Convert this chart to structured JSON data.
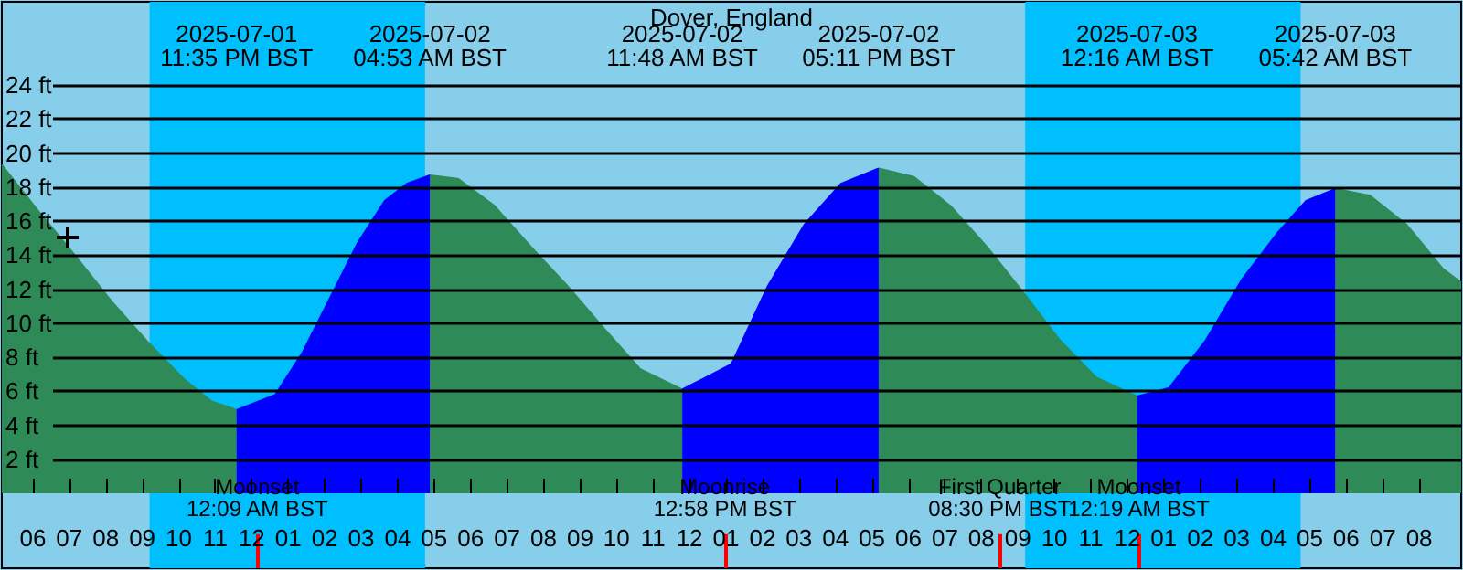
{
  "chart_data": {
    "type": "area",
    "title": "Dover, England",
    "xlim": [
      "2025-07-01T17:09",
      "2025-07-03T09:09"
    ],
    "xticks": [
      {
        "value": "2025-07-01T18:00",
        "label": "06"
      },
      {
        "value": "2025-07-01T19:00",
        "label": "07"
      },
      {
        "value": "2025-07-01T20:00",
        "label": "08"
      },
      {
        "value": "2025-07-01T21:00",
        "label": "09"
      },
      {
        "value": "2025-07-01T22:00",
        "label": "10"
      },
      {
        "value": "2025-07-01T23:00",
        "label": "11"
      },
      {
        "value": "2025-07-02T00:00",
        "label": "12"
      },
      {
        "value": "2025-07-02T01:00",
        "label": "01"
      },
      {
        "value": "2025-07-02T02:00",
        "label": "02"
      },
      {
        "value": "2025-07-02T03:00",
        "label": "03"
      },
      {
        "value": "2025-07-02T04:00",
        "label": "04"
      },
      {
        "value": "2025-07-02T05:00",
        "label": "05"
      },
      {
        "value": "2025-07-02T06:00",
        "label": "06"
      },
      {
        "value": "2025-07-02T07:00",
        "label": "07"
      },
      {
        "value": "2025-07-02T08:00",
        "label": "08"
      },
      {
        "value": "2025-07-02T09:00",
        "label": "09"
      },
      {
        "value": "2025-07-02T10:00",
        "label": "10"
      },
      {
        "value": "2025-07-02T11:00",
        "label": "11"
      },
      {
        "value": "2025-07-02T12:00",
        "label": "12"
      },
      {
        "value": "2025-07-02T13:00",
        "label": "01"
      },
      {
        "value": "2025-07-02T14:00",
        "label": "02"
      },
      {
        "value": "2025-07-02T15:00",
        "label": "03"
      },
      {
        "value": "2025-07-02T16:00",
        "label": "04"
      },
      {
        "value": "2025-07-02T17:00",
        "label": "05"
      },
      {
        "value": "2025-07-02T18:00",
        "label": "06"
      },
      {
        "value": "2025-07-02T19:00",
        "label": "07"
      },
      {
        "value": "2025-07-02T20:00",
        "label": "08"
      },
      {
        "value": "2025-07-02T21:00",
        "label": "09"
      },
      {
        "value": "2025-07-02T22:00",
        "label": "10"
      },
      {
        "value": "2025-07-02T23:00",
        "label": "11"
      },
      {
        "value": "2025-07-03T00:00",
        "label": "12"
      },
      {
        "value": "2025-07-03T01:00",
        "label": "01"
      },
      {
        "value": "2025-07-03T02:00",
        "label": "02"
      },
      {
        "value": "2025-07-03T03:00",
        "label": "03"
      },
      {
        "value": "2025-07-03T04:00",
        "label": "04"
      },
      {
        "value": "2025-07-03T05:00",
        "label": "05"
      },
      {
        "value": "2025-07-03T06:00",
        "label": "06"
      },
      {
        "value": "2025-07-03T07:00",
        "label": "07"
      },
      {
        "value": "2025-07-03T08:00",
        "label": "08"
      }
    ],
    "ylim": [
      -4.4,
      28.9
    ],
    "yticks": [
      {
        "value": 2,
        "label": "2 ft"
      },
      {
        "value": 4,
        "label": "4 ft"
      },
      {
        "value": 6,
        "label": "6 ft"
      },
      {
        "value": 8,
        "label": "8 ft"
      },
      {
        "value": 10,
        "label": "10 ft"
      },
      {
        "value": 12,
        "label": "12 ft"
      },
      {
        "value": 14,
        "label": "14 ft"
      },
      {
        "value": 16,
        "label": "16 ft"
      },
      {
        "value": 18,
        "label": "18 ft"
      },
      {
        "value": 20,
        "label": "20 ft"
      },
      {
        "value": 22,
        "label": "22 ft"
      },
      {
        "value": 24,
        "label": "24 ft"
      }
    ],
    "grid": "y",
    "series": [
      {
        "color": "#2e8b57",
        "x": [
          "2025-07-01T17:09",
          "2025-07-01T18:09",
          "2025-07-01T19:09",
          "2025-07-01T20:09",
          "2025-07-01T21:09",
          "2025-07-01T22:09",
          "2025-07-01T22:54",
          "2025-07-01T23:35",
          "2025-07-02T02:09",
          "2025-07-02T04:53",
          "2025-07-02T05:39",
          "2025-07-02T06:39",
          "2025-07-02T07:39",
          "2025-07-02T08:39",
          "2025-07-02T09:39",
          "2025-07-02T10:39",
          "2025-07-02T11:48",
          "2025-07-02T14:09",
          "2025-07-02T17:11",
          "2025-07-02T18:09",
          "2025-07-02T19:09",
          "2025-07-02T20:09",
          "2025-07-02T21:09",
          "2025-07-02T22:09",
          "2025-07-02T23:09",
          "2025-07-03T00:16",
          "2025-07-03T03:09",
          "2025-07-03T05:42",
          "2025-07-03T06:39",
          "2025-07-03T07:39",
          "2025-07-03T08:39",
          "2025-07-03T09:09"
        ],
        "values": [
          19.3,
          16.6,
          14.0,
          11.3,
          8.9,
          6.7,
          5.4,
          4.9,
          null,
          18.7,
          18.5,
          16.9,
          14.5,
          12.2,
          9.7,
          7.3,
          6.1,
          null,
          19.1,
          18.6,
          16.9,
          14.5,
          11.8,
          9.0,
          6.8,
          5.7,
          null,
          17.9,
          17.5,
          15.8,
          13.2,
          12.4
        ]
      },
      {
        "color": "#0000ff",
        "x": [
          "2025-07-01T23:35",
          "2025-07-02T00:39",
          "2025-07-02T01:24",
          "2025-07-02T02:09",
          "2025-07-02T02:54",
          "2025-07-02T03:39",
          "2025-07-02T04:15",
          "2025-07-02T04:53",
          "2025-07-02T08:39",
          "2025-07-02T11:48",
          "2025-07-02T13:09",
          "2025-07-02T14:09",
          "2025-07-02T15:09",
          "2025-07-02T16:09",
          "2025-07-02T17:11",
          "2025-07-02T21:09",
          "2025-07-03T00:16",
          "2025-07-03T01:09",
          "2025-07-03T02:09",
          "2025-07-03T03:09",
          "2025-07-03T04:09",
          "2025-07-03T04:54",
          "2025-07-03T05:42"
        ],
        "values": [
          4.9,
          5.8,
          8.3,
          11.5,
          14.7,
          17.2,
          18.2,
          18.7,
          null,
          6.1,
          7.6,
          12.2,
          15.8,
          18.2,
          19.1,
          null,
          5.7,
          6.2,
          9.0,
          12.6,
          15.4,
          17.2,
          17.9
        ]
      }
    ],
    "bands": [
      {
        "axis": "x",
        "from": "2025-07-01T21:12",
        "to": "2025-07-02T04:45",
        "color": "#00bfff"
      },
      {
        "axis": "x",
        "from": "2025-07-02T21:12",
        "to": "2025-07-03T04:45",
        "color": "#00bfff"
      }
    ],
    "ref_lines": [
      {
        "axis": "x",
        "value": "2025-07-02T00:09",
        "label": "Moonset\n12:09 AM BST",
        "color": "#ff0000"
      },
      {
        "axis": "x",
        "value": "2025-07-02T12:58",
        "label": "Moonrise\n12:58 PM BST",
        "color": "#ff0000"
      },
      {
        "axis": "x",
        "value": "2025-07-02T20:30",
        "label": "First Quarter\n08:30 PM BST",
        "color": "#ff0000"
      },
      {
        "axis": "x",
        "value": "2025-07-03T00:19",
        "label": "Moonset\n12:19 AM BST",
        "color": "#ff0000"
      }
    ],
    "annotations": [
      "2025-07-01\n11:35 PM BST",
      "2025-07-02\n04:53 AM BST",
      "2025-07-02\n11:48 AM BST",
      "2025-07-02\n05:11 PM BST",
      "2025-07-03\n12:16 AM BST",
      "2025-07-03\n05:42 AM BST"
    ]
  }
}
